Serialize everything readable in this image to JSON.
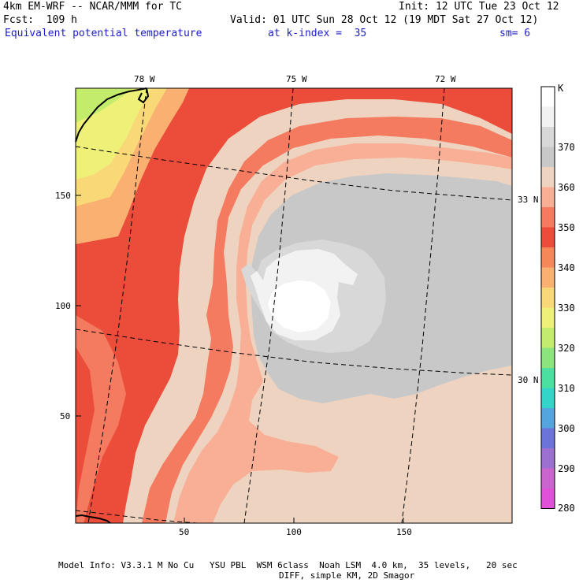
{
  "header": {
    "model_line": "4km EM-WRF -- NCAR/MMM for TC",
    "init_line": "Init: 12 UTC Tue 23 Oct 12",
    "fcst_line": "Fcst:  109 h",
    "valid_line": "Valid: 01 UTC Sun 28 Oct 12 (19 MDT Sat 27 Oct 12)",
    "field_name": "Equivalent potential temperature",
    "k_index": "at k-index =  35",
    "smoothing": "sm= 6"
  },
  "map": {
    "top_lon_labels": [
      "78 W",
      "75 W",
      "72 W"
    ],
    "right_lat_labels": [
      "33 N",
      "30 N"
    ],
    "left_grid_ticks": [
      "150",
      "100",
      "50"
    ],
    "bottom_grid_ticks": [
      "50",
      "100",
      "150"
    ]
  },
  "colorbar": {
    "unit": "K",
    "levels": [
      "370",
      "360",
      "350",
      "340",
      "330",
      "320",
      "310",
      "300",
      "290",
      "280"
    ],
    "colors": {
      "c375": "#ffffff",
      "c370": "#f2f2f2",
      "c365": "#d8d8d8",
      "c360": "#c8c8c8",
      "c355": "#eed4c0",
      "c350": "#f9ae96",
      "c345": "#f47b5f",
      "c340": "#ec4d3b",
      "c335": "#f58758",
      "c330": "#f9b070",
      "c325": "#f9d878",
      "c320": "#eef078",
      "c315": "#c4ec6c",
      "c310": "#8ce47c",
      "c305": "#4ce0a0",
      "c300": "#34d4c8",
      "c295": "#54a4e0",
      "c290": "#6c74dc",
      "c285": "#9c70d0",
      "c280": "#cc64d0",
      "c275": "#e050d8"
    }
  },
  "footer": {
    "line1": "Model Info: V3.3.1 M No Cu   YSU PBL  WSM 6class  Noah LSM  4.0 km,  35 levels,   20 sec",
    "line2": "DIFF, simple KM, 2D Smagor"
  }
}
